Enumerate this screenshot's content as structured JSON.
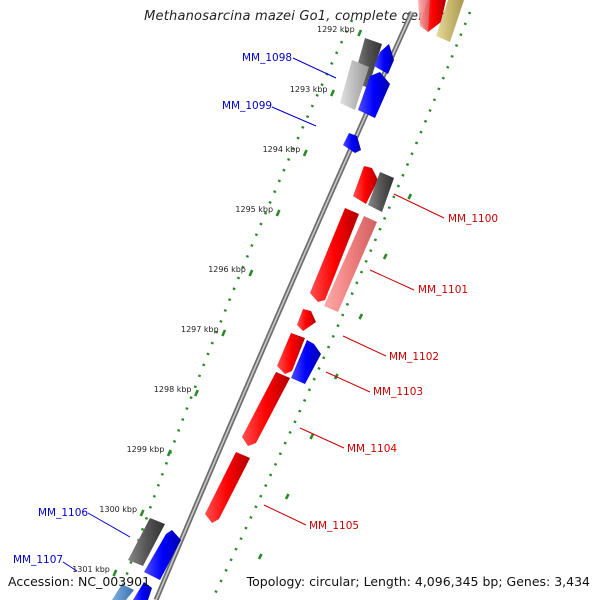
{
  "title": "Methanosarcina mazei Go1, complete genome",
  "accession_label": "Accession: NC_003901",
  "summary_label": "Topology: circular; Length: 4,096,345 bp; Genes: 3,434",
  "ticks": [
    {
      "label": "1292 kbp",
      "kbp": 1292
    },
    {
      "label": "1293 kbp",
      "kbp": 1293
    },
    {
      "label": "1294 kbp",
      "kbp": 1294
    },
    {
      "label": "1295 kbp",
      "kbp": 1295
    },
    {
      "label": "1296 kbp",
      "kbp": 1296
    },
    {
      "label": "1297 kbp",
      "kbp": 1297
    },
    {
      "label": "1298 kbp",
      "kbp": 1298
    },
    {
      "label": "1299 kbp",
      "kbp": 1299
    },
    {
      "label": "1300 kbp",
      "kbp": 1300
    },
    {
      "label": "1301 kbp",
      "kbp": 1301
    }
  ],
  "genes": [
    {
      "label": "MM_1098",
      "color": "#0000cc"
    },
    {
      "label": "MM_1099",
      "color": "#0000cc"
    },
    {
      "label": "MM_1100",
      "color": "#cc0000"
    },
    {
      "label": "MM_1101",
      "color": "#cc0000"
    },
    {
      "label": "MM_1102",
      "color": "#cc0000"
    },
    {
      "label": "MM_1103",
      "color": "#cc0000"
    },
    {
      "label": "MM_1104",
      "color": "#cc0000"
    },
    {
      "label": "MM_1105",
      "color": "#cc0000"
    },
    {
      "label": "MM_1106",
      "color": "#0000cc"
    },
    {
      "label": "MM_1107",
      "color": "#0000cc"
    }
  ],
  "colors": {
    "forward_strand": "#0000ff",
    "reverse_strand": "#ff0000",
    "backbone": "#888888",
    "tick_marks": "#2a8a2a"
  }
}
